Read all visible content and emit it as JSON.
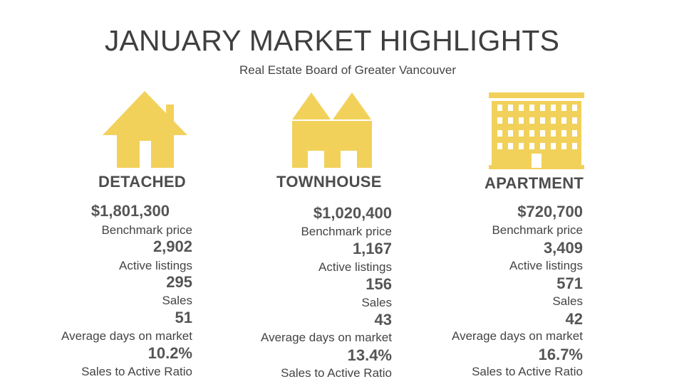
{
  "header": {
    "title": "JANUARY MARKET HIGHLIGHTS",
    "subtitle": "Real Estate Board of Greater Vancouver"
  },
  "colors": {
    "icon_fill": "#f2d15b",
    "text_dark": "#4d4d4d"
  },
  "categories": [
    {
      "icon": "house-icon",
      "name": "DETACHED",
      "benchmark_price": "$1,801,300",
      "benchmark_label": "Benchmark price",
      "active_listings": "2,902",
      "active_label": "Active listings",
      "sales": "295",
      "sales_label": "Sales",
      "avg_days": "51",
      "avg_days_label": "Average days on market",
      "ratio": "10.2%",
      "ratio_label": "Sales to Active Ratio"
    },
    {
      "icon": "townhouse-icon",
      "name": "TOWNHOUSE",
      "benchmark_price": "$1,020,400",
      "benchmark_label": "Benchmark price",
      "active_listings": "1,167",
      "active_label": "Active listings",
      "sales": "156",
      "sales_label": "Sales",
      "avg_days": "43",
      "avg_days_label": "Average days on market",
      "ratio": "13.4%",
      "ratio_label": "Sales to Active Ratio"
    },
    {
      "icon": "apartment-building-icon",
      "name": "APARTMENT",
      "benchmark_price": "$720,700",
      "benchmark_label": "Benchmark price",
      "active_listings": "3,409",
      "active_label": "Active listings",
      "sales": "571",
      "sales_label": "Sales",
      "avg_days": "42",
      "avg_days_label": "Average days on market",
      "ratio": "16.7%",
      "ratio_label": "Sales to Active Ratio"
    }
  ]
}
